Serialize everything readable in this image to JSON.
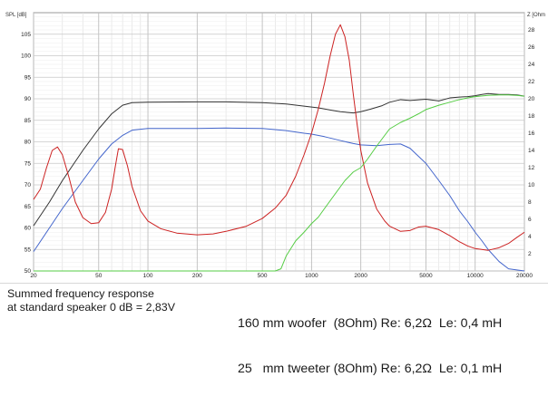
{
  "chart_data": {
    "type": "line",
    "left_axis_label": "SPL [dB]",
    "right_axis_label": "Z [Ohm",
    "x_scale": "log",
    "xlim": [
      20,
      20000
    ],
    "ylim_left": [
      50,
      110
    ],
    "ylim_right": [
      0,
      30
    ],
    "x_ticks": [
      20,
      50,
      100,
      200,
      500,
      1000,
      2000,
      5000,
      10000,
      20000
    ],
    "x_tick_labels": [
      "20",
      "50",
      "100",
      "200",
      "500",
      "1000",
      "2000",
      "5000",
      "10000",
      "20000"
    ],
    "y_left_ticks": [
      50,
      55,
      60,
      65,
      70,
      75,
      80,
      85,
      90,
      95,
      100,
      105
    ],
    "y_left_tick_labels": [
      "50",
      "55",
      "60",
      "65",
      "70",
      "75",
      "80",
      "85",
      "90",
      "95",
      "100",
      "105"
    ],
    "y_right_ticks": [
      2,
      4,
      6,
      8,
      10,
      12,
      14,
      16,
      18,
      20,
      22,
      24,
      26,
      28
    ],
    "y_right_tick_labels": [
      "2",
      "4",
      "6",
      "8",
      "10",
      "12",
      "14",
      "16",
      "18",
      "20",
      "22",
      "24",
      "26",
      "28"
    ],
    "grid": true,
    "series": [
      {
        "axis": "left",
        "color": "#333333",
        "points": [
          [
            20,
            60.5
          ],
          [
            25,
            66
          ],
          [
            30,
            71
          ],
          [
            40,
            78
          ],
          [
            50,
            83
          ],
          [
            60,
            86.5
          ],
          [
            70,
            88.5
          ],
          [
            80,
            89.1
          ],
          [
            100,
            89.2
          ],
          [
            200,
            89.3
          ],
          [
            300,
            89.3
          ],
          [
            500,
            89.1
          ],
          [
            700,
            88.8
          ],
          [
            900,
            88.3
          ],
          [
            1100,
            87.9
          ],
          [
            1300,
            87.4
          ],
          [
            1500,
            87
          ],
          [
            1800,
            86.7
          ],
          [
            2000,
            87
          ],
          [
            2300,
            87.6
          ],
          [
            2700,
            88.4
          ],
          [
            3000,
            89.2
          ],
          [
            3500,
            89.8
          ],
          [
            4000,
            89.6
          ],
          [
            5000,
            89.9
          ],
          [
            6000,
            89.5
          ],
          [
            7000,
            90.2
          ],
          [
            8000,
            90.4
          ],
          [
            9000,
            90.5
          ],
          [
            10000,
            90.7
          ],
          [
            11000,
            91
          ],
          [
            12000,
            91.2
          ],
          [
            14000,
            91
          ],
          [
            16000,
            91
          ],
          [
            18000,
            90.9
          ],
          [
            20000,
            90.6
          ]
        ]
      },
      {
        "axis": "left",
        "color": "#4466cc",
        "points": [
          [
            20,
            54.5
          ],
          [
            25,
            60
          ],
          [
            30,
            64.5
          ],
          [
            40,
            71
          ],
          [
            50,
            76
          ],
          [
            60,
            79.5
          ],
          [
            70,
            81.5
          ],
          [
            80,
            82.7
          ],
          [
            100,
            83.1
          ],
          [
            200,
            83.1
          ],
          [
            300,
            83.2
          ],
          [
            500,
            83.1
          ],
          [
            700,
            82.6
          ],
          [
            900,
            82
          ],
          [
            1000,
            81.8
          ],
          [
            1200,
            81.2
          ],
          [
            1500,
            80.3
          ],
          [
            1800,
            79.6
          ],
          [
            2000,
            79.3
          ],
          [
            2500,
            79.1
          ],
          [
            3000,
            79.4
          ],
          [
            3500,
            79.5
          ],
          [
            4000,
            78.5
          ],
          [
            5000,
            75
          ],
          [
            6000,
            71
          ],
          [
            7000,
            67.5
          ],
          [
            8000,
            64
          ],
          [
            9000,
            61.5
          ],
          [
            10000,
            59
          ],
          [
            11000,
            57
          ],
          [
            12000,
            55
          ],
          [
            14000,
            52.2
          ],
          [
            16000,
            50.5
          ],
          [
            20000,
            50
          ]
        ]
      },
      {
        "axis": "right",
        "color": "#cc2222",
        "points": [
          [
            20,
            8.3
          ],
          [
            22,
            9.5
          ],
          [
            24,
            12
          ],
          [
            26,
            14
          ],
          [
            28,
            14.4
          ],
          [
            30,
            13.5
          ],
          [
            33,
            10.8
          ],
          [
            36,
            8
          ],
          [
            40,
            6.2
          ],
          [
            45,
            5.5
          ],
          [
            50,
            5.6
          ],
          [
            55,
            6.8
          ],
          [
            60,
            9.5
          ],
          [
            63,
            12
          ],
          [
            66,
            14.2
          ],
          [
            70,
            14.1
          ],
          [
            75,
            12.2
          ],
          [
            80,
            9.8
          ],
          [
            90,
            7
          ],
          [
            100,
            5.8
          ],
          [
            120,
            4.9
          ],
          [
            150,
            4.4
          ],
          [
            200,
            4.2
          ],
          [
            250,
            4.3
          ],
          [
            300,
            4.6
          ],
          [
            400,
            5.2
          ],
          [
            500,
            6.1
          ],
          [
            600,
            7.3
          ],
          [
            700,
            8.8
          ],
          [
            800,
            11
          ],
          [
            900,
            13.5
          ],
          [
            1000,
            16
          ],
          [
            1100,
            18.8
          ],
          [
            1200,
            21.8
          ],
          [
            1300,
            25
          ],
          [
            1400,
            27.5
          ],
          [
            1500,
            28.6
          ],
          [
            1600,
            27.2
          ],
          [
            1700,
            24.5
          ],
          [
            1800,
            20.5
          ],
          [
            1900,
            17
          ],
          [
            2000,
            14
          ],
          [
            2200,
            10.2
          ],
          [
            2500,
            7.2
          ],
          [
            2800,
            5.8
          ],
          [
            3000,
            5.2
          ],
          [
            3500,
            4.6
          ],
          [
            4000,
            4.7
          ],
          [
            4500,
            5.1
          ],
          [
            5000,
            5.2
          ],
          [
            6000,
            4.8
          ],
          [
            7000,
            4.1
          ],
          [
            8000,
            3.4
          ],
          [
            9000,
            2.9
          ],
          [
            10000,
            2.6
          ],
          [
            12000,
            2.4
          ],
          [
            14000,
            2.7
          ],
          [
            16000,
            3.2
          ],
          [
            18000,
            3.9
          ],
          [
            20000,
            4.5
          ]
        ]
      },
      {
        "axis": "left",
        "color": "#55cc44",
        "points": [
          [
            20,
            50
          ],
          [
            600,
            50
          ],
          [
            650,
            50.5
          ],
          [
            700,
            53.5
          ],
          [
            800,
            57
          ],
          [
            900,
            59
          ],
          [
            1000,
            61
          ],
          [
            1100,
            62.5
          ],
          [
            1200,
            64.5
          ],
          [
            1400,
            68
          ],
          [
            1600,
            71
          ],
          [
            1800,
            73
          ],
          [
            2000,
            74
          ],
          [
            2200,
            76
          ],
          [
            2500,
            79
          ],
          [
            2800,
            81.5
          ],
          [
            3000,
            83
          ],
          [
            3500,
            84.5
          ],
          [
            4000,
            85.5
          ],
          [
            4500,
            86.5
          ],
          [
            5000,
            87.5
          ],
          [
            6000,
            88.5
          ],
          [
            7000,
            89.2
          ],
          [
            8000,
            89.8
          ],
          [
            9000,
            90.2
          ],
          [
            10000,
            90.5
          ],
          [
            12000,
            90.8
          ],
          [
            14000,
            90.9
          ],
          [
            16000,
            90.9
          ],
          [
            18000,
            90.8
          ],
          [
            20000,
            90.6
          ]
        ]
      }
    ]
  },
  "caption": {
    "left_line1": "Summed frequency response",
    "left_line2": "at standard speaker 0 dB = 2,83V",
    "right_line1": "160 mm woofer  (8Ohm) Re: 6,2Ω  Le: 0,4 mH",
    "right_line2": "25   mm tweeter (8Ohm) Re: 6,2Ω  Le: 0,1 mH"
  }
}
